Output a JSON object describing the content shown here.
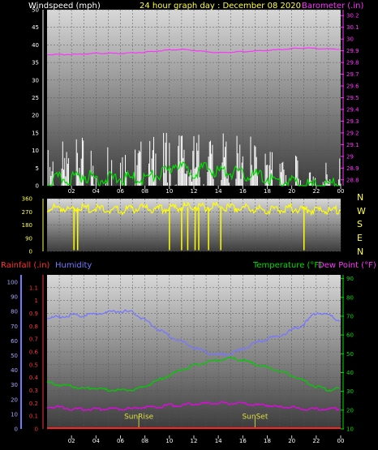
{
  "header": {
    "left_label": "Windspeed (mph)",
    "center_label": "24 hour graph day : December 08 2020",
    "right_label": "Barometer (.in)"
  },
  "colors": {
    "windspeed": "#ffffff",
    "windgust": "#00dd00",
    "barometer": "#ff33ff",
    "direction": "#ffff00",
    "humidity": "#7777ff",
    "temperature": "#00cc00",
    "dewpoint": "#ee00ee",
    "rainfall": "#ff2222",
    "sunmark": "#cccc44"
  },
  "chart_data": [
    {
      "type": "line",
      "title": "24 hour graph day : December 08 2020",
      "xlabel": "",
      "ylabel": "Windspeed (mph)",
      "y2label": "Barometer (.in)",
      "x_ticks": [
        "02",
        "04",
        "06",
        "08",
        "10",
        "12",
        "14",
        "16",
        "18",
        "20",
        "22",
        "00"
      ],
      "ylim": [
        0,
        50
      ],
      "y_ticks": [
        0,
        5,
        10,
        15,
        20,
        25,
        30,
        35,
        40,
        45,
        50
      ],
      "y2lim": [
        28.75,
        30.25
      ],
      "y2_ticks": [
        "28.8",
        "28.9",
        "29",
        "29.1",
        "29.2",
        "29.3",
        "29.4",
        "29.5",
        "29.6",
        "29.7",
        "29.8",
        "29.9",
        "30",
        "30.1",
        "30.2"
      ],
      "grid": true,
      "series": [
        {
          "name": "Barometer (.in)",
          "axis": "right",
          "hours": [
            0,
            2,
            4,
            6,
            8,
            10,
            11,
            12,
            13,
            14,
            15,
            16,
            17,
            18,
            20,
            21,
            22,
            23,
            24
          ],
          "values": [
            29.87,
            29.87,
            29.88,
            29.88,
            29.89,
            29.91,
            29.915,
            29.905,
            29.895,
            29.885,
            29.89,
            29.895,
            29.9,
            29.905,
            29.92,
            29.925,
            29.922,
            29.918,
            29.915
          ]
        },
        {
          "name": "Windspeed (mph)",
          "axis": "left",
          "hours": [
            0,
            1,
            2,
            3,
            4,
            5,
            6,
            7,
            8,
            9,
            10,
            10.5,
            11,
            12,
            13,
            14,
            15,
            16,
            17,
            18,
            19,
            20,
            21,
            22,
            23,
            24
          ],
          "values": [
            4,
            6,
            5,
            7,
            5,
            6,
            5,
            5,
            6,
            7,
            8,
            10,
            11,
            10,
            9,
            9,
            8,
            7,
            7,
            6,
            5,
            4,
            3,
            2,
            3,
            4
          ],
          "max": [
            9,
            12,
            11,
            12,
            10,
            12,
            11,
            11,
            12,
            13,
            15,
            15,
            14,
            13,
            15,
            14,
            12,
            13,
            12,
            10,
            8,
            7,
            6,
            5,
            6,
            7
          ]
        },
        {
          "name": "Wind gust",
          "axis": "left",
          "hours": [
            0,
            1,
            2,
            3,
            4,
            5,
            6,
            7,
            8,
            9,
            10,
            10.5,
            11,
            12,
            13,
            14,
            15,
            16,
            17,
            18,
            19,
            20,
            21,
            22,
            23,
            24
          ],
          "values": [
            2,
            3,
            3,
            4,
            3,
            3,
            3,
            3,
            3,
            4,
            5,
            8,
            6,
            5,
            6,
            5,
            5,
            4,
            4,
            3,
            2,
            2,
            1,
            1,
            1,
            2
          ]
        }
      ]
    },
    {
      "type": "line",
      "xlabel": "",
      "ylabel": "",
      "ylim": [
        0,
        360
      ],
      "y_ticks": [
        0,
        90,
        180,
        270,
        360
      ],
      "right_labels": [
        "N",
        "W",
        "S",
        "E",
        "N"
      ],
      "grid": true,
      "series": [
        {
          "name": "Wind direction",
          "hours": [
            0,
            1,
            2,
            3,
            4,
            5,
            6,
            7,
            8,
            9,
            10,
            11,
            12,
            13,
            14,
            15,
            16,
            17,
            18,
            19,
            20,
            21,
            22,
            23,
            24
          ],
          "values": [
            305,
            315,
            300,
            310,
            305,
            300,
            295,
            305,
            310,
            300,
            312,
            318,
            320,
            315,
            320,
            315,
            310,
            305,
            300,
            305,
            308,
            300,
            295,
            290,
            300
          ],
          "dips_hours": [
            2.2,
            2.5,
            10.0,
            11.0,
            11.5,
            12.1,
            12.4,
            13.2,
            14.2,
            21.0
          ]
        }
      ]
    },
    {
      "type": "line",
      "xlabel": "",
      "ylabel": "Rainfall (.in)",
      "ylabel2": "Humidity",
      "y2label": "Temperature (°F)",
      "y2label2": "Dew Point (°F)",
      "x_ticks": [
        "02",
        "04",
        "06",
        "08",
        "10",
        "12",
        "14",
        "16",
        "18",
        "20",
        "22",
        "00"
      ],
      "ylim": [
        0,
        1.2
      ],
      "y_ticks": [
        "0",
        "0.1",
        "0.2",
        "0.3",
        "0.4",
        "0.5",
        "0.6",
        "0.7",
        "0.8",
        "0.9",
        "1",
        "1.1"
      ],
      "humidity_ticks": [
        0,
        10,
        20,
        30,
        40,
        50,
        60,
        70,
        80,
        90,
        100
      ],
      "y2lim": [
        10,
        92
      ],
      "y2_ticks": [
        10,
        20,
        30,
        40,
        50,
        60,
        70,
        80,
        90
      ],
      "annotations": [
        {
          "text": "SunRise",
          "hour": 7.5
        },
        {
          "text": "SunSet",
          "hour": 17
        }
      ],
      "grid": true,
      "series": [
        {
          "name": "Humidity",
          "axis": "humidity",
          "hours": [
            0,
            1,
            2,
            3,
            4,
            5,
            6,
            7,
            8,
            9,
            10,
            11,
            12,
            13,
            14,
            15,
            16,
            17,
            18,
            19,
            20,
            21,
            22,
            23,
            24
          ],
          "values": [
            76,
            77,
            78,
            78,
            79,
            80,
            81,
            80,
            75,
            69,
            64,
            60,
            56,
            53,
            51,
            52,
            55,
            59,
            62,
            64,
            68,
            72,
            80,
            78,
            74
          ]
        },
        {
          "name": "Temperature (°F)",
          "axis": "right",
          "hours": [
            0,
            1,
            2,
            3,
            4,
            5,
            6,
            7,
            8,
            9,
            10,
            11,
            12,
            13,
            14,
            15,
            16,
            17,
            18,
            19,
            20,
            21,
            22,
            23,
            24
          ],
          "values": [
            35,
            34,
            33,
            32,
            32,
            31,
            31,
            31,
            33,
            36,
            39,
            42,
            44,
            46,
            47,
            48,
            47,
            45,
            43,
            41,
            39,
            36,
            33,
            31,
            32
          ]
        },
        {
          "name": "Dew Point (°F)",
          "axis": "right",
          "hours": [
            0,
            1,
            2,
            3,
            4,
            5,
            6,
            7,
            8,
            9,
            10,
            11,
            12,
            13,
            14,
            15,
            16,
            17,
            18,
            19,
            20,
            21,
            22,
            23,
            24
          ],
          "values": [
            22,
            22,
            21,
            21,
            21,
            21,
            21,
            21,
            22,
            22,
            23,
            23,
            24,
            24,
            24,
            24,
            24,
            23,
            23,
            22,
            22,
            21,
            21,
            21,
            21
          ]
        },
        {
          "name": "Rainfall (.in)",
          "axis": "left",
          "hours": [
            0,
            24
          ],
          "values": [
            0,
            0
          ]
        }
      ]
    }
  ]
}
